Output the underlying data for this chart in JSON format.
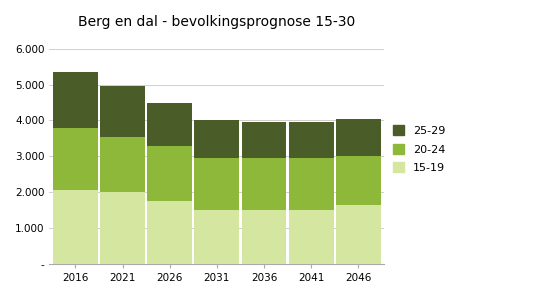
{
  "title": "Berg en dal - bevolkingsprognose 15-30",
  "years": [
    2016,
    2021,
    2026,
    2031,
    2036,
    2041,
    2046
  ],
  "age_15_19": [
    2050,
    2000,
    1750,
    1500,
    1500,
    1500,
    1650
  ],
  "age_20_24": [
    1750,
    1550,
    1550,
    1450,
    1450,
    1450,
    1350
  ],
  "age_25_29": [
    1550,
    1400,
    1200,
    1050,
    1000,
    1000,
    1050
  ],
  "color_15_19": "#d4e6a0",
  "color_20_24": "#8db83a",
  "color_25_29": "#4a5c28",
  "legend_labels": [
    "25-29",
    "20-24",
    "15-19"
  ],
  "yticks": [
    0,
    1000,
    2000,
    3000,
    4000,
    5000,
    6000
  ],
  "ytick_labels": [
    "-",
    "1.000",
    "2.000",
    "3.000",
    "4.000",
    "5.000",
    "6.000"
  ],
  "ylim": [
    0,
    6400
  ],
  "bg_color": "#ffffff",
  "plot_bg": "#ffffff",
  "grid_color": "#c8c8c8",
  "bar_width": 0.95
}
